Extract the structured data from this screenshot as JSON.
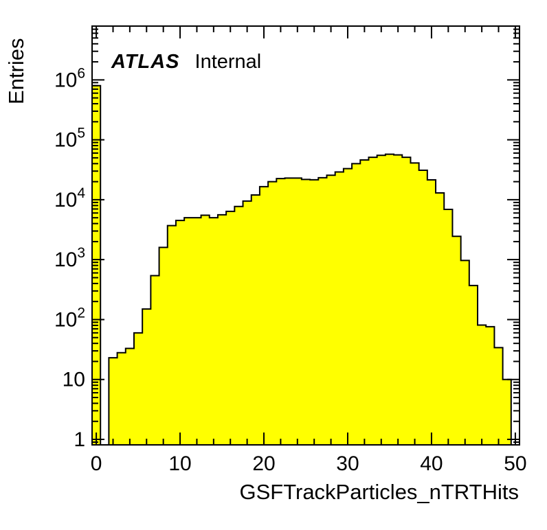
{
  "annotation": {
    "brand": "ATLAS",
    "status": "Internal"
  },
  "chart_data": {
    "type": "bar",
    "title": "",
    "xlabel": "GSFTrackParticles_nTRTHits",
    "ylabel": "Entries",
    "yscale": "log",
    "grid": false,
    "legend": null,
    "xlim": [
      -0.5,
      50.5
    ],
    "ylim": [
      0.81,
      7900000
    ],
    "bin_width": 1,
    "bin_centers": [
      0,
      1,
      2,
      3,
      4,
      5,
      6,
      7,
      8,
      9,
      10,
      11,
      12,
      13,
      14,
      15,
      16,
      17,
      18,
      19,
      20,
      21,
      22,
      23,
      24,
      25,
      26,
      27,
      28,
      29,
      30,
      31,
      32,
      33,
      34,
      35,
      36,
      37,
      38,
      39,
      40,
      41,
      42,
      43,
      44,
      45,
      46,
      47,
      48,
      49,
      50
    ],
    "values": [
      800000,
      0,
      23,
      28,
      33,
      60,
      150,
      540,
      1600,
      3700,
      4500,
      5000,
      5000,
      5500,
      5000,
      5600,
      6400,
      7700,
      9500,
      12000,
      16500,
      20000,
      22500,
      23000,
      23000,
      21800,
      21500,
      23300,
      25600,
      29000,
      33000,
      40000,
      46000,
      51000,
      55000,
      57500,
      56000,
      51000,
      41000,
      31000,
      21400,
      13000,
      6900,
      2450,
      970,
      370,
      81,
      76,
      34,
      10,
      0
    ],
    "x_ticks": [
      0,
      10,
      20,
      30,
      40,
      50
    ],
    "x_minor_tick_step": 2,
    "y_ticks": [
      {
        "value": 1,
        "label": "1",
        "sup": ""
      },
      {
        "value": 10,
        "label": "10",
        "sup": ""
      },
      {
        "value": 100,
        "label": "10",
        "sup": "2"
      },
      {
        "value": 1000,
        "label": "10",
        "sup": "3"
      },
      {
        "value": 10000,
        "label": "10",
        "sup": "4"
      },
      {
        "value": 100000,
        "label": "10",
        "sup": "5"
      },
      {
        "value": 1000000,
        "label": "10",
        "sup": "6"
      }
    ],
    "colors": {
      "fill": "#ffff00",
      "line": "#000000",
      "background": "#ffffff",
      "text": "#000000"
    }
  }
}
